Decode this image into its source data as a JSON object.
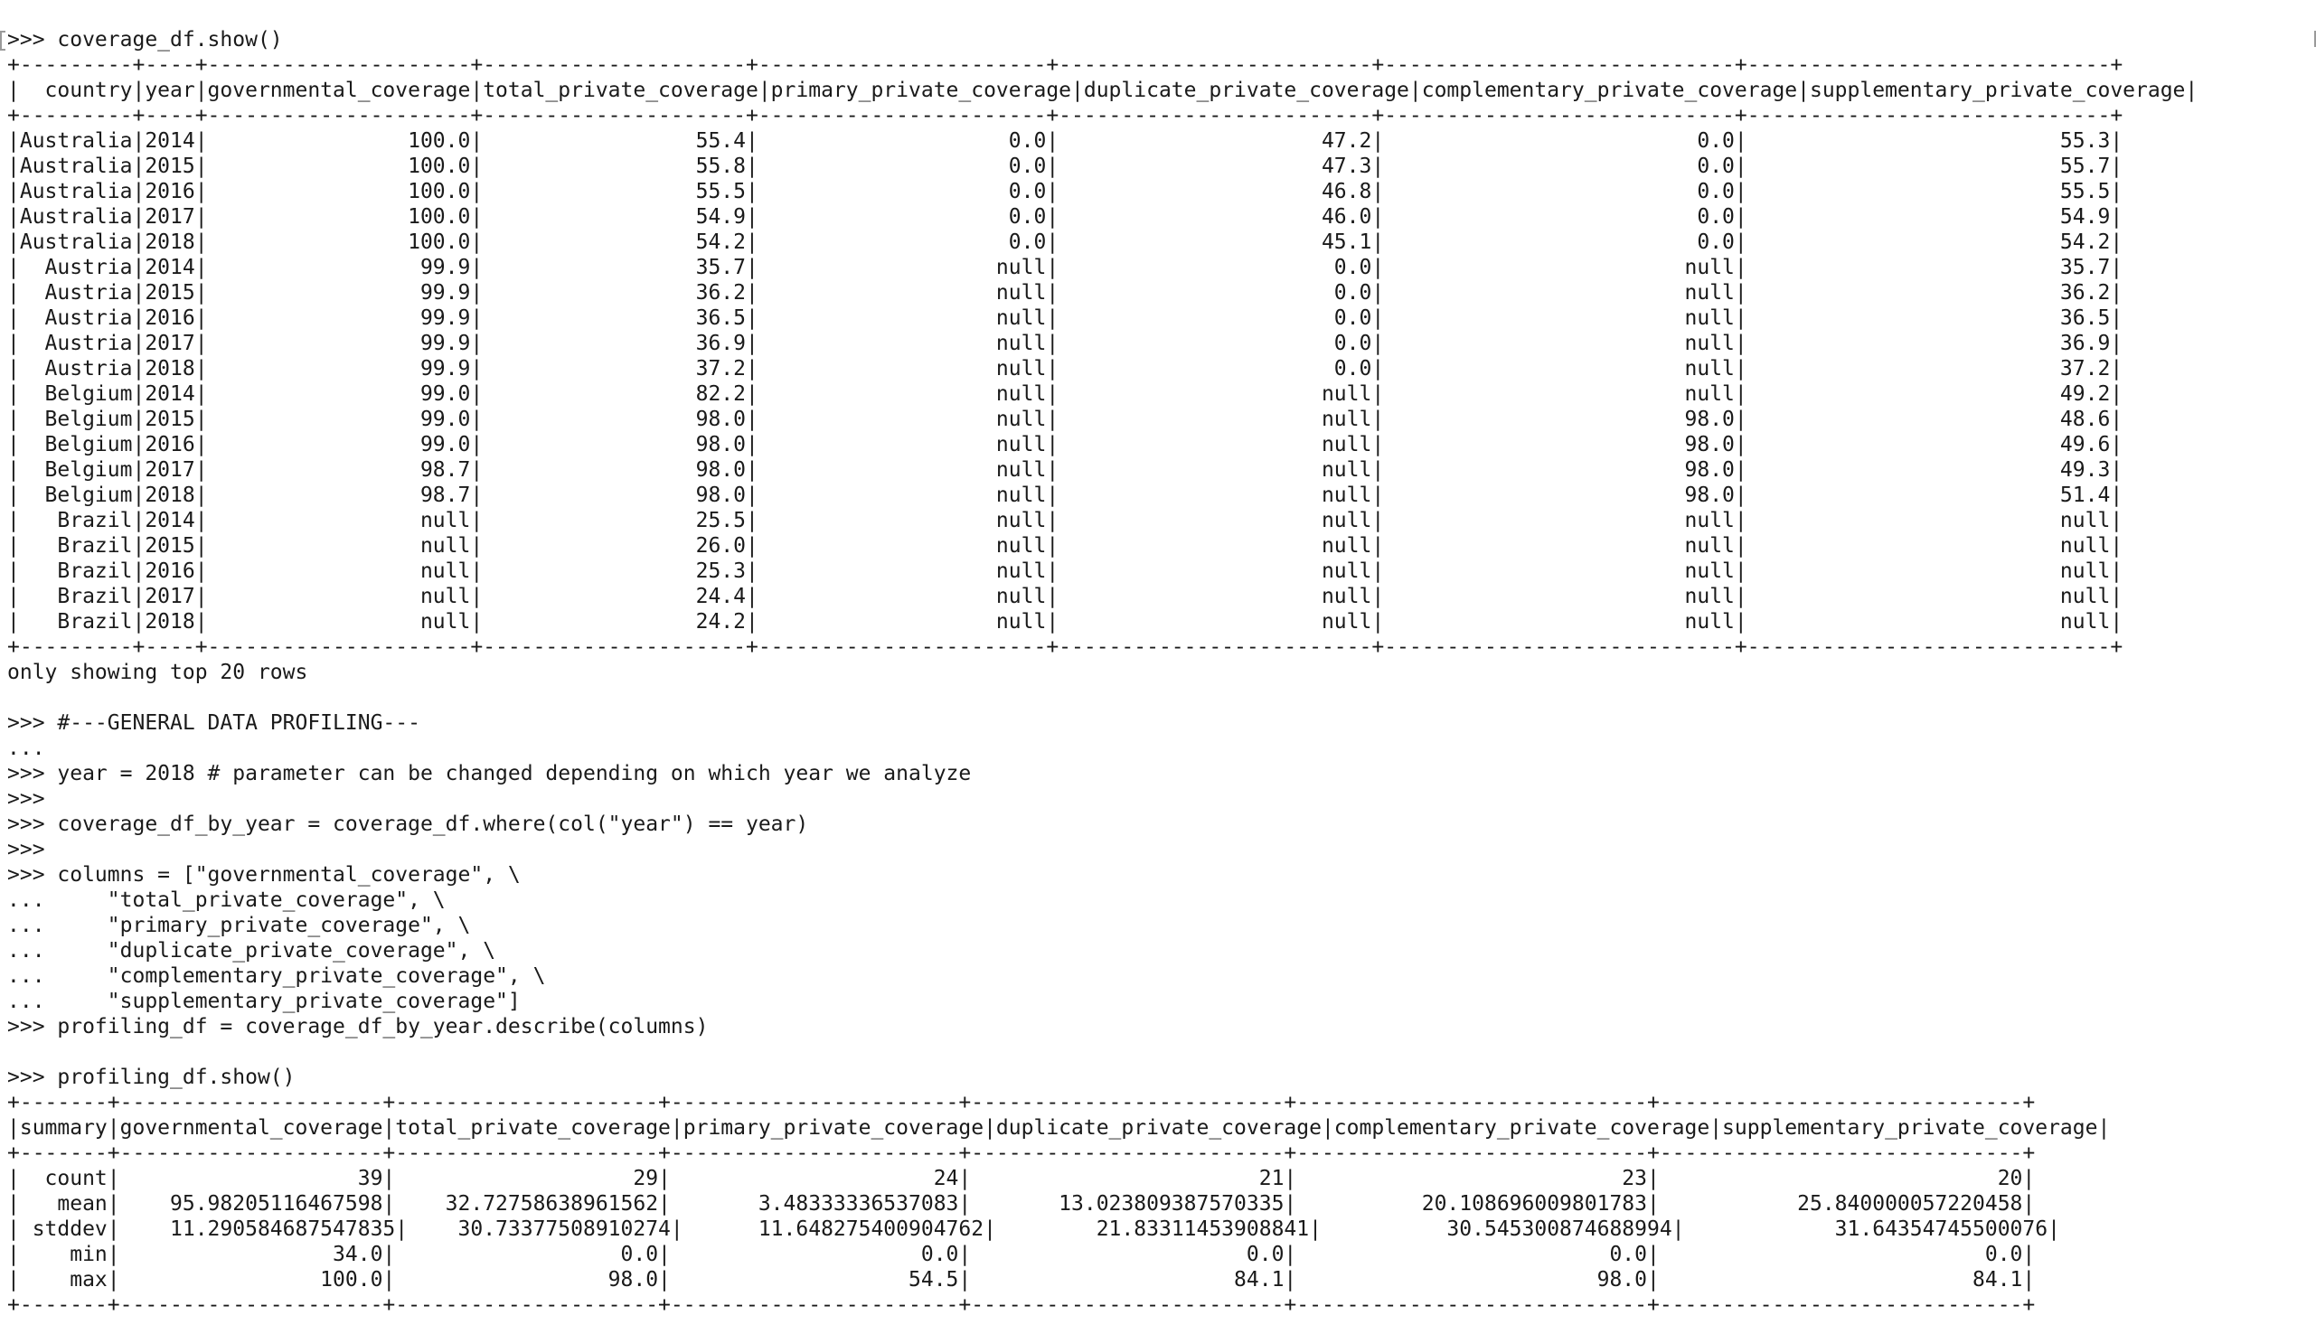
{
  "terminal": {
    "lines": [
      ">>> coverage_df.show()",
      "+---------+----+---------------------+---------------------+-----------------------+-------------------------+----------------------------+-----------------------------+",
      "|  country|year|governmental_coverage|total_private_coverage|primary_private_coverage|duplicate_private_coverage|complementary_private_coverage|supplementary_private_coverage|",
      "+---------+----+---------------------+---------------------+-----------------------+-------------------------+----------------------------+-----------------------------+",
      "|Australia|2014|                100.0|                 55.4|                    0.0|                     47.2|                         0.0|                         55.3|",
      "|Australia|2015|                100.0|                 55.8|                    0.0|                     47.3|                         0.0|                         55.7|",
      "|Australia|2016|                100.0|                 55.5|                    0.0|                     46.8|                         0.0|                         55.5|",
      "|Australia|2017|                100.0|                 54.9|                    0.0|                     46.0|                         0.0|                         54.9|",
      "|Australia|2018|                100.0|                 54.2|                    0.0|                     45.1|                         0.0|                         54.2|",
      "|  Austria|2014|                 99.9|                 35.7|                   null|                      0.0|                        null|                         35.7|",
      "|  Austria|2015|                 99.9|                 36.2|                   null|                      0.0|                        null|                         36.2|",
      "|  Austria|2016|                 99.9|                 36.5|                   null|                      0.0|                        null|                         36.5|",
      "|  Austria|2017|                 99.9|                 36.9|                   null|                      0.0|                        null|                         36.9|",
      "|  Austria|2018|                 99.9|                 37.2|                   null|                      0.0|                        null|                         37.2|",
      "|  Belgium|2014|                 99.0|                 82.2|                   null|                     null|                        null|                         49.2|",
      "|  Belgium|2015|                 99.0|                 98.0|                   null|                     null|                        98.0|                         48.6|",
      "|  Belgium|2016|                 99.0|                 98.0|                   null|                     null|                        98.0|                         49.6|",
      "|  Belgium|2017|                 98.7|                 98.0|                   null|                     null|                        98.0|                         49.3|",
      "|  Belgium|2018|                 98.7|                 98.0|                   null|                     null|                        98.0|                         51.4|",
      "|   Brazil|2014|                 null|                 25.5|                   null|                     null|                        null|                         null|",
      "|   Brazil|2015|                 null|                 26.0|                   null|                     null|                        null|                         null|",
      "|   Brazil|2016|                 null|                 25.3|                   null|                     null|                        null|                         null|",
      "|   Brazil|2017|                 null|                 24.4|                   null|                     null|                        null|                         null|",
      "|   Brazil|2018|                 null|                 24.2|                   null|                     null|                        null|                         null|",
      "+---------+----+---------------------+---------------------+-----------------------+-------------------------+----------------------------+-----------------------------+",
      "only showing top 20 rows",
      "",
      ">>> #---GENERAL DATA PROFILING---",
      "...",
      ">>> year = 2018 # parameter can be changed depending on which year we analyze",
      ">>>",
      ">>> coverage_df_by_year = coverage_df.where(col(\"year\") == year)",
      ">>>",
      ">>> columns = [\"governmental_coverage\", \\",
      "...     \"total_private_coverage\", \\",
      "...     \"primary_private_coverage\", \\",
      "...     \"duplicate_private_coverage\", \\",
      "...     \"complementary_private_coverage\", \\",
      "...     \"supplementary_private_coverage\"]",
      ">>> profiling_df = coverage_df_by_year.describe(columns)",
      "",
      ">>> profiling_df.show()",
      "+-------+---------------------+---------------------+-----------------------+-------------------------+----------------------------+-----------------------------+",
      "|summary|governmental_coverage|total_private_coverage|primary_private_coverage|duplicate_private_coverage|complementary_private_coverage|supplementary_private_coverage|",
      "+-------+---------------------+---------------------+-----------------------+-------------------------+----------------------------+-----------------------------+",
      "|  count|                   39|                   29|                     24|                       21|                          23|                           20|",
      "|   mean|    95.98205116467598|    32.72758638961562|       3.48333336537083|       13.023809387570335|          20.108696009801783|           25.840000057220458|",
      "| stddev|    11.290584687547835|    30.73377508910274|      11.648275400904762|        21.83311453908841|          30.545300874688994|            31.64354745500076|",
      "|    min|                 34.0|                  0.0|                    0.0|                      0.0|                         0.0|                          0.0|",
      "|    max|                100.0|                 98.0|                   54.5|                     84.1|                        98.0|                         84.1|",
      "+-------+---------------------+---------------------+-----------------------+-------------------------+----------------------------+-----------------------------+"
    ]
  }
}
